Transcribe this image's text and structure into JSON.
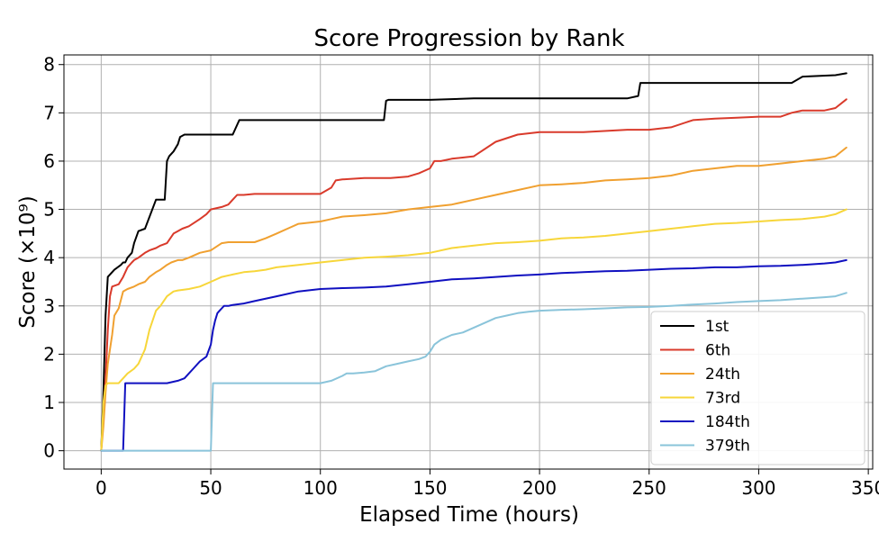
{
  "chart_data": {
    "type": "line",
    "title": "Score Progression by Rank",
    "xlabel": "Elapsed Time (hours)",
    "ylabel": "Score (×10⁹)",
    "xlim": [
      -17,
      352
    ],
    "ylim": [
      -0.38,
      8.2
    ],
    "xticks": [
      0,
      50,
      100,
      150,
      200,
      250,
      300,
      350
    ],
    "yticks": [
      0,
      1,
      2,
      3,
      4,
      5,
      6,
      7,
      8
    ],
    "grid": true,
    "legend_position": "lower-right",
    "series": [
      {
        "name": "1st",
        "color": "#000000",
        "x": [
          0,
          1,
          2,
          3,
          5,
          6,
          9,
          10,
          11,
          12,
          14,
          15,
          17,
          20,
          25,
          27,
          29,
          30,
          31,
          33,
          35,
          36,
          38,
          40,
          45,
          50,
          60,
          63,
          65,
          80,
          100,
          120,
          129,
          130,
          131,
          150,
          170,
          175,
          200,
          240,
          245,
          246,
          247,
          260,
          300,
          315,
          320,
          335,
          340
        ],
        "y": [
          0,
          1.2,
          2.8,
          3.6,
          3.7,
          3.75,
          3.85,
          3.9,
          3.9,
          4.0,
          4.1,
          4.3,
          4.55,
          4.6,
          5.2,
          5.2,
          5.2,
          6.0,
          6.1,
          6.2,
          6.35,
          6.5,
          6.55,
          6.55,
          6.55,
          6.55,
          6.55,
          6.85,
          6.85,
          6.85,
          6.85,
          6.85,
          6.85,
          7.25,
          7.27,
          7.27,
          7.3,
          7.3,
          7.3,
          7.3,
          7.35,
          7.62,
          7.62,
          7.62,
          7.62,
          7.62,
          7.75,
          7.78,
          7.82
        ]
      },
      {
        "name": "6th",
        "color": "#d93a2b",
        "x": [
          0,
          1,
          2,
          3,
          4,
          5,
          8,
          10,
          12,
          14,
          15,
          17,
          20,
          22,
          25,
          27,
          30,
          33,
          35,
          37,
          40,
          45,
          48,
          50,
          55,
          58,
          60,
          62,
          65,
          70,
          80,
          90,
          100,
          105,
          107,
          110,
          120,
          125,
          130,
          132,
          140,
          145,
          150,
          152,
          155,
          160,
          170,
          180,
          190,
          200,
          210,
          220,
          240,
          250,
          260,
          270,
          280,
          290,
          300,
          310,
          315,
          320,
          330,
          335,
          340
        ],
        "y": [
          0,
          0.8,
          1.5,
          2.5,
          3.2,
          3.4,
          3.45,
          3.6,
          3.8,
          3.9,
          3.95,
          4.0,
          4.1,
          4.15,
          4.2,
          4.25,
          4.3,
          4.5,
          4.55,
          4.6,
          4.65,
          4.8,
          4.9,
          5.0,
          5.05,
          5.1,
          5.2,
          5.3,
          5.3,
          5.32,
          5.32,
          5.32,
          5.32,
          5.45,
          5.6,
          5.62,
          5.65,
          5.65,
          5.65,
          5.65,
          5.68,
          5.75,
          5.85,
          6.0,
          6.0,
          6.05,
          6.1,
          6.4,
          6.55,
          6.6,
          6.6,
          6.6,
          6.65,
          6.65,
          6.7,
          6.85,
          6.88,
          6.9,
          6.92,
          6.92,
          7.0,
          7.05,
          7.05,
          7.1,
          7.28
        ]
      },
      {
        "name": "24th",
        "color": "#f0a030",
        "x": [
          0,
          1,
          2,
          3,
          5,
          6,
          8,
          10,
          12,
          15,
          17,
          20,
          22,
          25,
          27,
          30,
          32,
          35,
          37,
          40,
          45,
          50,
          55,
          58,
          60,
          70,
          75,
          80,
          85,
          90,
          100,
          105,
          110,
          120,
          130,
          140,
          150,
          160,
          170,
          180,
          190,
          200,
          210,
          220,
          230,
          240,
          250,
          260,
          270,
          280,
          290,
          300,
          310,
          320,
          330,
          335,
          340
        ],
        "y": [
          0,
          0.5,
          1.2,
          1.8,
          2.4,
          2.8,
          2.95,
          3.3,
          3.35,
          3.4,
          3.45,
          3.5,
          3.6,
          3.7,
          3.75,
          3.85,
          3.9,
          3.95,
          3.95,
          4.0,
          4.1,
          4.15,
          4.3,
          4.32,
          4.32,
          4.32,
          4.4,
          4.5,
          4.6,
          4.7,
          4.75,
          4.8,
          4.85,
          4.88,
          4.92,
          5.0,
          5.05,
          5.1,
          5.2,
          5.3,
          5.4,
          5.5,
          5.52,
          5.55,
          5.6,
          5.62,
          5.65,
          5.7,
          5.8,
          5.85,
          5.9,
          5.9,
          5.95,
          6.0,
          6.05,
          6.1,
          6.28
        ]
      },
      {
        "name": "73rd",
        "color": "#f7d63a",
        "x": [
          0,
          1,
          2,
          3,
          4,
          5,
          6,
          8,
          10,
          12,
          15,
          17,
          20,
          22,
          25,
          27,
          30,
          33,
          35,
          40,
          45,
          50,
          55,
          60,
          65,
          70,
          75,
          80,
          90,
          100,
          110,
          120,
          130,
          140,
          150,
          160,
          170,
          180,
          190,
          200,
          210,
          220,
          230,
          240,
          250,
          260,
          270,
          280,
          290,
          300,
          310,
          320,
          330,
          335,
          340
        ],
        "y": [
          0,
          1.0,
          1.35,
          1.4,
          1.4,
          1.4,
          1.4,
          1.4,
          1.5,
          1.6,
          1.7,
          1.8,
          2.1,
          2.5,
          2.9,
          3.0,
          3.2,
          3.3,
          3.32,
          3.35,
          3.4,
          3.5,
          3.6,
          3.65,
          3.7,
          3.72,
          3.75,
          3.8,
          3.85,
          3.9,
          3.95,
          4.0,
          4.02,
          4.05,
          4.1,
          4.2,
          4.25,
          4.3,
          4.32,
          4.35,
          4.4,
          4.42,
          4.45,
          4.5,
          4.55,
          4.6,
          4.65,
          4.7,
          4.72,
          4.75,
          4.78,
          4.8,
          4.85,
          4.9,
          5.0
        ]
      },
      {
        "name": "184th",
        "color": "#1010c0",
        "x": [
          0,
          1,
          9,
          10,
          11,
          12,
          15,
          20,
          25,
          30,
          35,
          38,
          40,
          42,
          45,
          48,
          50,
          51,
          52,
          53,
          54,
          55,
          56,
          58,
          60,
          65,
          70,
          80,
          90,
          100,
          110,
          120,
          130,
          140,
          150,
          160,
          170,
          180,
          190,
          200,
          210,
          220,
          230,
          240,
          250,
          260,
          270,
          280,
          290,
          300,
          310,
          320,
          330,
          335,
          340
        ],
        "y": [
          0,
          0,
          0,
          0,
          1.4,
          1.4,
          1.4,
          1.4,
          1.4,
          1.4,
          1.45,
          1.5,
          1.6,
          1.7,
          1.85,
          1.95,
          2.2,
          2.5,
          2.7,
          2.85,
          2.9,
          2.95,
          3.0,
          3.0,
          3.02,
          3.05,
          3.1,
          3.2,
          3.3,
          3.35,
          3.37,
          3.38,
          3.4,
          3.45,
          3.5,
          3.55,
          3.57,
          3.6,
          3.63,
          3.65,
          3.68,
          3.7,
          3.72,
          3.73,
          3.75,
          3.77,
          3.78,
          3.8,
          3.8,
          3.82,
          3.83,
          3.85,
          3.88,
          3.9,
          3.95
        ]
      },
      {
        "name": "379th",
        "color": "#8ac4da",
        "x": [
          0,
          1,
          50,
          51,
          52,
          60,
          80,
          100,
          105,
          110,
          112,
          115,
          120,
          125,
          130,
          135,
          140,
          145,
          148,
          150,
          152,
          155,
          160,
          165,
          170,
          175,
          180,
          185,
          190,
          195,
          200,
          210,
          220,
          230,
          240,
          250,
          260,
          270,
          280,
          290,
          300,
          310,
          320,
          330,
          335,
          340
        ],
        "y": [
          0,
          0,
          0,
          1.4,
          1.4,
          1.4,
          1.4,
          1.4,
          1.45,
          1.55,
          1.6,
          1.6,
          1.62,
          1.65,
          1.75,
          1.8,
          1.85,
          1.9,
          1.95,
          2.05,
          2.2,
          2.3,
          2.4,
          2.45,
          2.55,
          2.65,
          2.75,
          2.8,
          2.85,
          2.88,
          2.9,
          2.92,
          2.93,
          2.95,
          2.97,
          2.98,
          3.0,
          3.03,
          3.05,
          3.08,
          3.1,
          3.12,
          3.15,
          3.18,
          3.2,
          3.27
        ]
      }
    ]
  }
}
